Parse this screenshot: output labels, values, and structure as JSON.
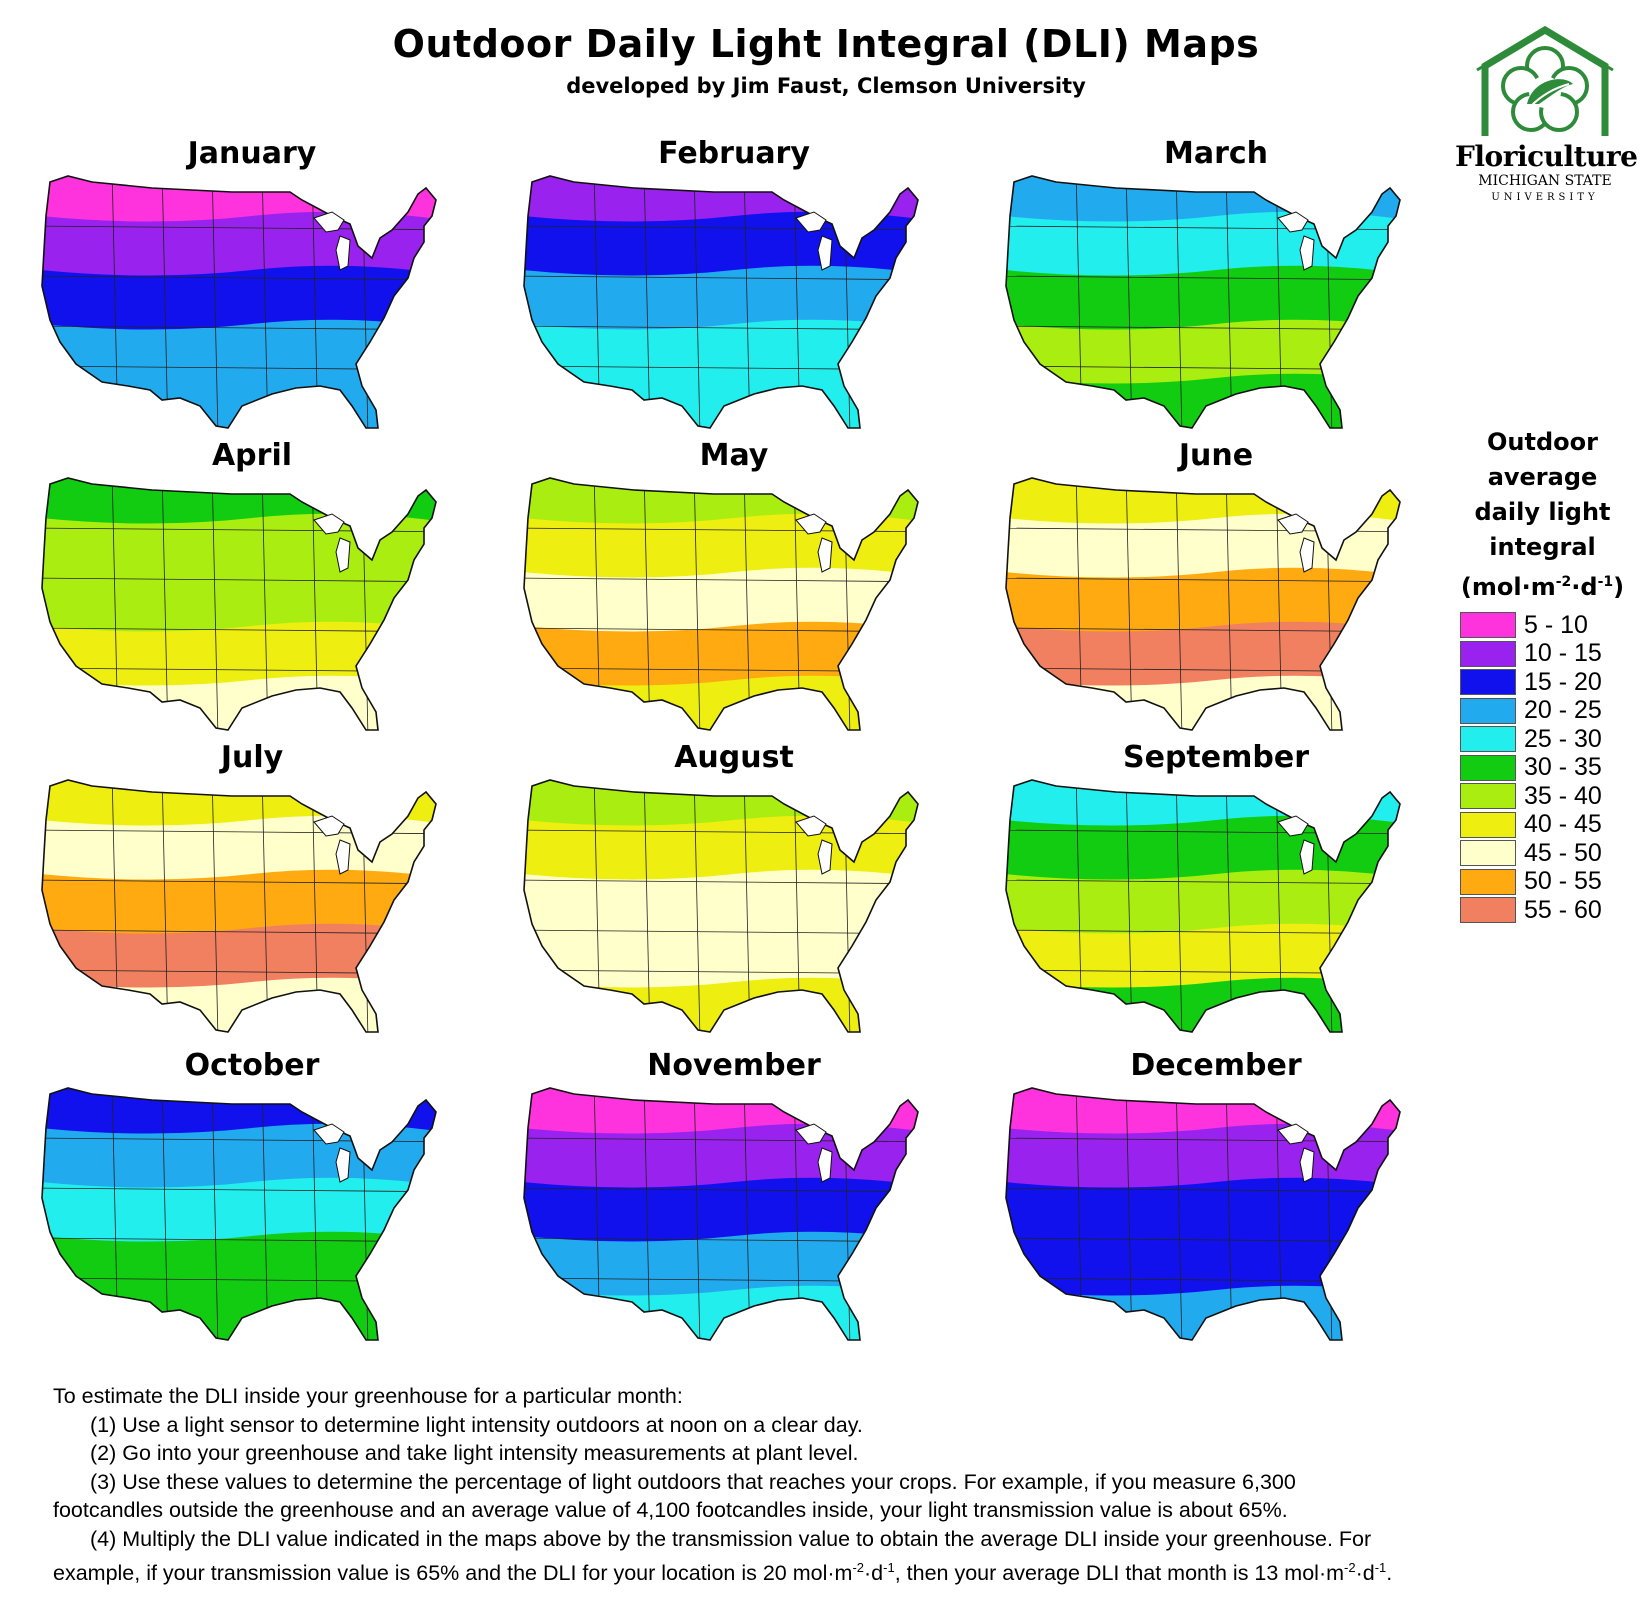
{
  "header": {
    "title": "Outdoor Daily Light Integral (DLI) Maps",
    "subtitle": "developed by Jim Faust, Clemson University"
  },
  "logo": {
    "name": "Floriculture",
    "line1": "MICHIGAN STATE",
    "line2": "UNIVERSITY",
    "color": "#2e8b3a",
    "icon": "flower-in-house-icon"
  },
  "legend": {
    "title_lines": [
      "Outdoor",
      "average",
      "daily light",
      "integral"
    ],
    "unit": {
      "pre": "(mol·m",
      "sup1": "-2",
      "mid": "·d",
      "sup2": "-1",
      "post": ")"
    },
    "items": [
      {
        "label": "5 - 10",
        "color": "#ff33dd"
      },
      {
        "label": "10 - 15",
        "color": "#9922ee"
      },
      {
        "label": "15 - 20",
        "color": "#1111ee"
      },
      {
        "label": "20 - 25",
        "color": "#22aaee"
      },
      {
        "label": "25 - 30",
        "color": "#22eeee"
      },
      {
        "label": "30 - 35",
        "color": "#11cc11"
      },
      {
        "label": "35 - 40",
        "color": "#aaee11"
      },
      {
        "label": "40 - 45",
        "color": "#eeee11"
      },
      {
        "label": "45 - 50",
        "color": "#ffffcc"
      },
      {
        "label": "50 - 55",
        "color": "#ffaa11"
      },
      {
        "label": "55 - 60",
        "color": "#f08060"
      }
    ]
  },
  "maps": [
    {
      "month": "January",
      "bands": [
        "#ff33dd",
        "#9922ee",
        "#1111ee",
        "#22aaee",
        "#22aaee"
      ]
    },
    {
      "month": "February",
      "bands": [
        "#9922ee",
        "#1111ee",
        "#22aaee",
        "#22eeee",
        "#22eeee"
      ]
    },
    {
      "month": "March",
      "bands": [
        "#22aaee",
        "#22eeee",
        "#11cc11",
        "#aaee11",
        "#11cc11"
      ]
    },
    {
      "month": "April",
      "bands": [
        "#11cc11",
        "#aaee11",
        "#aaee11",
        "#eeee11",
        "#ffffcc"
      ]
    },
    {
      "month": "May",
      "bands": [
        "#aaee11",
        "#eeee11",
        "#ffffcc",
        "#ffaa11",
        "#eeee11"
      ]
    },
    {
      "month": "June",
      "bands": [
        "#eeee11",
        "#ffffcc",
        "#ffaa11",
        "#f08060",
        "#ffffcc"
      ]
    },
    {
      "month": "July",
      "bands": [
        "#eeee11",
        "#ffffcc",
        "#ffaa11",
        "#f08060",
        "#ffffcc"
      ]
    },
    {
      "month": "August",
      "bands": [
        "#aaee11",
        "#eeee11",
        "#ffffcc",
        "#ffffcc",
        "#eeee11"
      ]
    },
    {
      "month": "September",
      "bands": [
        "#22eeee",
        "#11cc11",
        "#aaee11",
        "#eeee11",
        "#11cc11"
      ]
    },
    {
      "month": "October",
      "bands": [
        "#1111ee",
        "#22aaee",
        "#22eeee",
        "#11cc11",
        "#11cc11"
      ]
    },
    {
      "month": "November",
      "bands": [
        "#ff33dd",
        "#9922ee",
        "#1111ee",
        "#22aaee",
        "#22eeee"
      ]
    },
    {
      "month": "December",
      "bands": [
        "#ff33dd",
        "#9922ee",
        "#1111ee",
        "#1111ee",
        "#22aaee"
      ]
    }
  ],
  "instructions": {
    "intro": "To estimate the DLI inside your greenhouse for a particular month:",
    "step1": "(1)  Use a light sensor to determine light intensity outdoors at noon on a clear day.",
    "step2": "(2)  Go into your greenhouse and take light intensity measurements at plant level.",
    "step3a": "(3)  Use these values to determine the percentage of light outdoors that reaches your crops. For example, if you measure 6,300",
    "step3b": "footcandles outside the greenhouse and an average value of 4,100 footcandles inside, your light transmission value is about 65%.",
    "step4a": "(4)  Multiply the DLI value indicated in the maps above by the transmission value to obtain the average DLI inside your greenhouse.  For",
    "step4b_pre": "example, if your transmission value is 65% and the DLI for your location is 20 mol·m",
    "step4b_mid": ", then your average DLI that month is 13 mol·m",
    "step4b_end": ".",
    "unit_sup1": "-2",
    "unit_dot": "·d",
    "unit_sup2": "-1"
  }
}
